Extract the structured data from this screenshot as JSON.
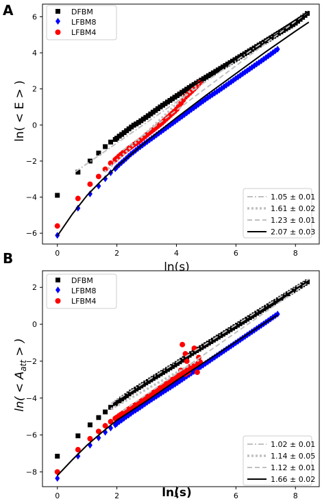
{
  "chart_data": [
    {
      "panel_label": "A",
      "type": "scatter",
      "xlabel": "ln(s)",
      "ylabel": "ln( < E > )",
      "xlim": [
        -0.5,
        8.8
      ],
      "ylim": [
        -6.6,
        6.7
      ],
      "xticks": [
        0,
        2,
        4,
        6,
        8
      ],
      "yticks": [
        -6,
        -4,
        -2,
        0,
        2,
        4,
        6
      ],
      "legend_markers": {
        "position": "top-left",
        "entries": [
          "DFBM",
          "LFBM8",
          "LFBM4"
        ]
      },
      "legend_lines": {
        "position": "bottom-right",
        "entries": [
          "1.05 ± 0.01",
          "1.61 ± 0.02",
          "1.23 ± 0.01",
          "2.07 ± 0.03"
        ]
      },
      "series": [
        {
          "name": "DFBM",
          "marker": "square",
          "color": "#000000",
          "x0": 2.0,
          "x1": 8.4,
          "n": 80,
          "curve": [
            [
              0,
              -3.9
            ],
            [
              0.69,
              -2.62
            ],
            [
              1.1,
              -2.0
            ],
            [
              1.39,
              -1.55
            ],
            [
              1.61,
              -1.2
            ],
            [
              1.79,
              -0.95
            ],
            [
              1.95,
              -0.8
            ],
            [
              2.08,
              -0.62
            ],
            [
              2.2,
              -0.48
            ],
            [
              2.3,
              -0.35
            ],
            [
              2.4,
              -0.22
            ],
            [
              2.48,
              -0.12
            ],
            [
              2.56,
              -0.02
            ],
            [
              2.64,
              0.05
            ],
            [
              2.71,
              0.12
            ],
            [
              3,
              0.45
            ],
            [
              3.5,
              1.05
            ],
            [
              4,
              1.6
            ],
            [
              4.5,
              2.15
            ],
            [
              5,
              2.65
            ],
            [
              5.5,
              3.15
            ],
            [
              6,
              3.65
            ],
            [
              6.5,
              4.15
            ],
            [
              7,
              4.65
            ],
            [
              7.5,
              5.15
            ],
            [
              8,
              5.65
            ],
            [
              8.45,
              6.25
            ]
          ]
        },
        {
          "name": "LFBM8",
          "marker": "diamond",
          "color": "#0000ff",
          "x0": 2.0,
          "x1": 7.4,
          "n": 70,
          "curve": [
            [
              0,
              -6.12
            ],
            [
              0.69,
              -4.62
            ],
            [
              1.1,
              -3.82
            ],
            [
              1.39,
              -3.38
            ],
            [
              1.61,
              -2.98
            ],
            [
              1.79,
              -2.65
            ],
            [
              1.95,
              -2.42
            ],
            [
              2.08,
              -2.2
            ],
            [
              2.2,
              -2.02
            ],
            [
              2.3,
              -1.88
            ],
            [
              2.4,
              -1.72
            ],
            [
              2.48,
              -1.6
            ],
            [
              2.56,
              -1.5
            ],
            [
              2.64,
              -1.4
            ],
            [
              2.71,
              -1.3
            ],
            [
              3,
              -0.95
            ],
            [
              3.5,
              -0.35
            ],
            [
              4,
              0.25
            ],
            [
              4.5,
              0.85
            ],
            [
              5,
              1.45
            ],
            [
              5.5,
              2.0
            ],
            [
              6,
              2.58
            ],
            [
              6.5,
              3.15
            ],
            [
              7,
              3.72
            ],
            [
              7.4,
              4.2
            ]
          ]
        },
        {
          "name": "LFBM4",
          "marker": "circle",
          "color": "#ff0000",
          "x0": 2.0,
          "x1": 4.8,
          "n": 40,
          "curve": [
            [
              0,
              -5.6
            ],
            [
              0.69,
              -4.08
            ],
            [
              1.1,
              -3.28
            ],
            [
              1.39,
              -2.85
            ],
            [
              1.61,
              -2.45
            ],
            [
              1.79,
              -2.12
            ],
            [
              1.95,
              -1.92
            ],
            [
              2.08,
              -1.72
            ],
            [
              2.2,
              -1.55
            ],
            [
              2.3,
              -1.42
            ],
            [
              2.4,
              -1.3
            ],
            [
              2.48,
              -1.2
            ],
            [
              2.56,
              -1.1
            ],
            [
              2.64,
              -1.02
            ],
            [
              2.71,
              -0.95
            ],
            [
              3,
              -0.55
            ],
            [
              3.5,
              0.1
            ],
            [
              4,
              0.85
            ],
            [
              4.3,
              1.55
            ],
            [
              4.5,
              1.85
            ],
            [
              4.8,
              2.35
            ]
          ]
        }
      ],
      "fit_lines": [
        {
          "label": "1.05 ± 0.01",
          "style": "dashdot",
          "color": "#c0c0c0",
          "pts": [
            [
              0.6,
              -2.6
            ],
            [
              8.45,
              6.35
            ]
          ]
        },
        {
          "label": "1.61 ± 0.02",
          "style": "dotted",
          "color": "#c0c0c0",
          "pts": [
            [
              1.6,
              -2.6
            ],
            [
              4.8,
              2.4
            ]
          ]
        },
        {
          "label": "1.23 ± 0.01",
          "style": "dashed",
          "color": "#c0c0c0",
          "pts": [
            [
              2.2,
              -1.4
            ],
            [
              8.45,
              6.3
            ]
          ]
        },
        {
          "label": "2.07 ± 0.03",
          "style": "solid",
          "color": "#000000",
          "pts": [
            [
              0,
              -6.15
            ],
            [
              0.5,
              -4.95
            ],
            [
              1,
              -3.9
            ],
            [
              1.5,
              -3.05
            ],
            [
              2,
              -2.3
            ],
            [
              3,
              -0.9
            ],
            [
              4,
              0.4
            ],
            [
              5,
              1.65
            ],
            [
              6,
              2.85
            ],
            [
              7,
              4.05
            ],
            [
              8,
              5.2
            ],
            [
              8.45,
              5.7
            ]
          ]
        },
        {
          "label": "",
          "style": "solid",
          "color": "#000000",
          "pts": [
            [
              3.9,
              1.45
            ],
            [
              6,
              3.7
            ],
            [
              8.45,
              6.3
            ]
          ]
        }
      ]
    },
    {
      "panel_label": "B",
      "type": "scatter",
      "xlabel": "ln(s)",
      "ylabel": "ln( < A_att > )",
      "xlim": [
        -0.5,
        8.8
      ],
      "ylim": [
        -8.8,
        2.9
      ],
      "xticks": [
        0,
        2,
        4,
        6,
        8
      ],
      "yticks": [
        -8,
        -6,
        -4,
        -2,
        0,
        2
      ],
      "legend_markers": {
        "position": "top-left",
        "entries": [
          "DFBM",
          "LFBM8",
          "LFBM4"
        ]
      },
      "legend_lines": {
        "position": "bottom-right",
        "entries": [
          "1.02 ± 0.01",
          "1.14 ± 0.05",
          "1.12 ± 0.01",
          "1.66 ± 0.02"
        ]
      },
      "series": [
        {
          "name": "DFBM",
          "marker": "square",
          "color": "#000000",
          "x0": 2.0,
          "x1": 8.4,
          "n": 80,
          "curve": [
            [
              0,
              -7.15
            ],
            [
              0.69,
              -6.05
            ],
            [
              1.1,
              -5.45
            ],
            [
              1.39,
              -5.05
            ],
            [
              1.61,
              -4.75
            ],
            [
              1.79,
              -4.5
            ],
            [
              1.95,
              -4.3
            ],
            [
              2.08,
              -4.15
            ],
            [
              2.2,
              -4.0
            ],
            [
              2.3,
              -3.9
            ],
            [
              2.4,
              -3.78
            ],
            [
              2.48,
              -3.68
            ],
            [
              2.56,
              -3.6
            ],
            [
              2.64,
              -3.52
            ],
            [
              2.71,
              -3.45
            ],
            [
              3,
              -3.15
            ],
            [
              3.5,
              -2.65
            ],
            [
              4,
              -2.15
            ],
            [
              4.5,
              -1.6
            ],
            [
              5,
              -1.1
            ],
            [
              5.5,
              -0.6
            ],
            [
              6,
              -0.1
            ],
            [
              6.5,
              0.4
            ],
            [
              7,
              0.9
            ],
            [
              7.5,
              1.4
            ],
            [
              8,
              1.9
            ],
            [
              8.45,
              2.35
            ]
          ]
        },
        {
          "name": "LFBM8",
          "marker": "diamond",
          "color": "#0000ff",
          "x0": 2.0,
          "x1": 7.4,
          "n": 70,
          "curve": [
            [
              0,
              -8.35
            ],
            [
              0.69,
              -7.15
            ],
            [
              1.1,
              -6.55
            ],
            [
              1.39,
              -6.15
            ],
            [
              1.61,
              -5.85
            ],
            [
              1.79,
              -5.62
            ],
            [
              1.95,
              -5.45
            ],
            [
              2.08,
              -5.28
            ],
            [
              2.2,
              -5.15
            ],
            [
              2.3,
              -5.02
            ],
            [
              2.4,
              -4.92
            ],
            [
              2.48,
              -4.82
            ],
            [
              2.56,
              -4.72
            ],
            [
              2.64,
              -4.65
            ],
            [
              2.71,
              -4.58
            ],
            [
              3,
              -4.25
            ],
            [
              3.5,
              -3.72
            ],
            [
              4,
              -3.2
            ],
            [
              4.5,
              -2.65
            ],
            [
              5,
              -2.1
            ],
            [
              5.5,
              -1.55
            ],
            [
              6,
              -1.0
            ],
            [
              6.5,
              -0.45
            ],
            [
              7,
              0.1
            ],
            [
              7.4,
              0.55
            ]
          ]
        },
        {
          "name": "LFBM4",
          "marker": "circle",
          "color": "#ff0000",
          "x0": 2.0,
          "x1": 4.8,
          "n": 40,
          "curve": [
            [
              0,
              -8.0
            ],
            [
              0.69,
              -6.8
            ],
            [
              1.1,
              -6.2
            ],
            [
              1.39,
              -5.8
            ],
            [
              1.61,
              -5.5
            ],
            [
              1.79,
              -5.28
            ],
            [
              1.95,
              -5.1
            ],
            [
              2.08,
              -4.95
            ],
            [
              2.2,
              -4.82
            ],
            [
              2.3,
              -4.7
            ],
            [
              2.4,
              -4.6
            ],
            [
              2.48,
              -4.5
            ],
            [
              2.56,
              -4.42
            ],
            [
              2.64,
              -4.35
            ],
            [
              2.71,
              -4.28
            ],
            [
              3,
              -3.95
            ],
            [
              3.5,
              -3.4
            ],
            [
              4,
              -2.85
            ],
            [
              4.5,
              -2.35
            ],
            [
              4.8,
              -2.05
            ]
          ]
        }
      ],
      "extra_points": [
        {
          "name": "LFBM4",
          "pts": [
            [
              4.2,
              -1.1
            ],
            [
              4.3,
              -1.6
            ],
            [
              4.35,
              -2.0
            ],
            [
              4.4,
              -2.6
            ],
            [
              4.45,
              -2.3
            ],
            [
              4.6,
              -1.3
            ],
            [
              4.7,
              -2.6
            ],
            [
              4.75,
              -1.8
            ],
            [
              4.3,
              -2.7
            ],
            [
              4.15,
              -2.5
            ]
          ]
        }
      ],
      "fit_lines": [
        {
          "label": "1.02 ± 0.01",
          "style": "dashdot",
          "color": "#c0c0c0",
          "pts": [
            [
              1.8,
              -4.3
            ],
            [
              8.45,
              2.45
            ]
          ]
        },
        {
          "label": "1.14 ± 0.05",
          "style": "dotted",
          "color": "#c0c0c0",
          "pts": [
            [
              1.8,
              -4.6
            ],
            [
              4.8,
              -1.9
            ]
          ]
        },
        {
          "label": "1.12 ± 0.01",
          "style": "dashed",
          "color": "#c0c0c0",
          "pts": [
            [
              2.2,
              -4.7
            ],
            [
              8.45,
              2.3
            ]
          ]
        },
        {
          "label": "1.66 ± 0.02",
          "style": "solid",
          "color": "#000000",
          "pts": [
            [
              0,
              -8.2
            ],
            [
              0.5,
              -7.35
            ],
            [
              1,
              -6.55
            ],
            [
              1.5,
              -5.85
            ],
            [
              2,
              -5.2
            ],
            [
              3,
              -4.15
            ],
            [
              4,
              -3.05
            ],
            [
              5,
              -2.0
            ],
            [
              6,
              -0.95
            ],
            [
              7,
              0.1
            ],
            [
              7.4,
              0.5
            ]
          ]
        },
        {
          "label": "",
          "style": "solid",
          "color": "#000000",
          "pts": [
            [
              1.9,
              -4.3
            ],
            [
              5,
              -1.15
            ],
            [
              8.45,
              2.35
            ]
          ]
        }
      ]
    }
  ]
}
